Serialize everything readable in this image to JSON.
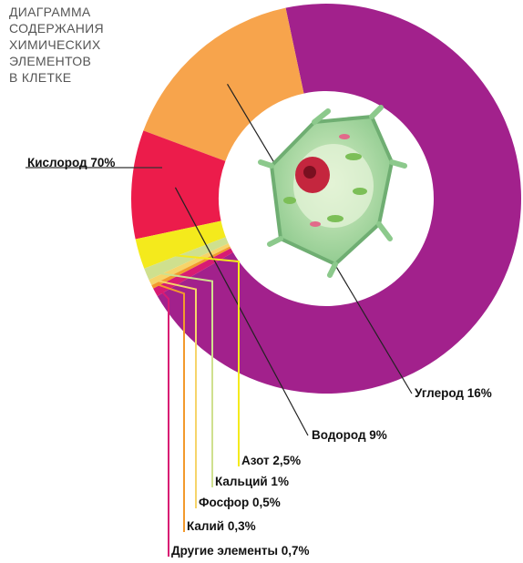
{
  "title": "ДИАГРАММА\nСОДЕРЖАНИЯ\nХИМИЧЕСКИХ\nЭЛЕМЕНТОВ\nВ КЛЕТКЕ",
  "center_icon": "plant-cell-illustration",
  "chart_data": {
    "type": "pie",
    "donut": true,
    "title": "ДИАГРАММА СОДЕРЖАНИЯ ХИМИЧЕСКИХ ЭЛЕМЕНТОВ В КЛЕТКЕ",
    "slices": [
      {
        "label": "Кислород 70%",
        "value": 70,
        "color": "#a2218c"
      },
      {
        "label": "Углерод 16%",
        "value": 16,
        "color": "#f7a44c"
      },
      {
        "label": "Водород 9%",
        "value": 9,
        "color": "#ec1c4b"
      },
      {
        "label": "Азот 2,5%",
        "value": 2.5,
        "color": "#f4ea1c"
      },
      {
        "label": "Кальций 1%",
        "value": 1,
        "color": "#cfe08e"
      },
      {
        "label": "Фосфор 0,5%",
        "value": 0.5,
        "color": "#f6d46a"
      },
      {
        "label": "Калий 0,3%",
        "value": 0.3,
        "color": "#f39a2d"
      },
      {
        "label": "Другие элементы 0,7%",
        "value": 0.7,
        "color": "#d81b73"
      }
    ]
  }
}
